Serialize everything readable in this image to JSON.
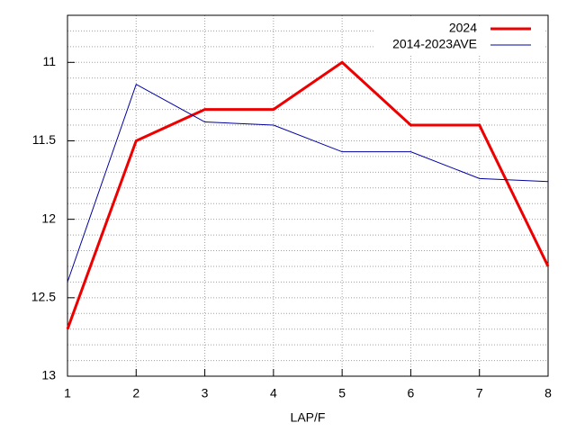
{
  "chart_data": {
    "type": "line",
    "xlabel": "LAP/F",
    "x": [
      1,
      2,
      3,
      4,
      5,
      6,
      7,
      8
    ],
    "series": [
      {
        "name": "2024",
        "color": "#ee0000",
        "width": 3,
        "values": [
          12.7,
          11.5,
          11.3,
          11.3,
          11.0,
          11.4,
          11.4,
          12.3
        ]
      },
      {
        "name": "2014-2023AVE",
        "color": "#0000a0",
        "width": 1,
        "values": [
          12.4,
          11.14,
          11.38,
          11.4,
          11.57,
          11.57,
          11.74,
          11.76
        ]
      }
    ],
    "xlim": [
      1,
      8
    ],
    "xticks": [
      1,
      2,
      3,
      4,
      5,
      6,
      7,
      8
    ],
    "ylim": [
      10.7,
      13
    ],
    "yticks": [
      11,
      11.5,
      12,
      12.5,
      13
    ],
    "yminorticks": [
      10.7,
      10.8,
      10.9,
      11.1,
      11.2,
      11.3,
      11.4,
      11.6,
      11.7,
      11.8,
      11.9,
      12.1,
      12.2,
      12.3,
      12.4,
      12.6,
      12.7,
      12.8,
      12.9
    ],
    "y_inverted": true,
    "grid": true,
    "legend": "top-right"
  }
}
